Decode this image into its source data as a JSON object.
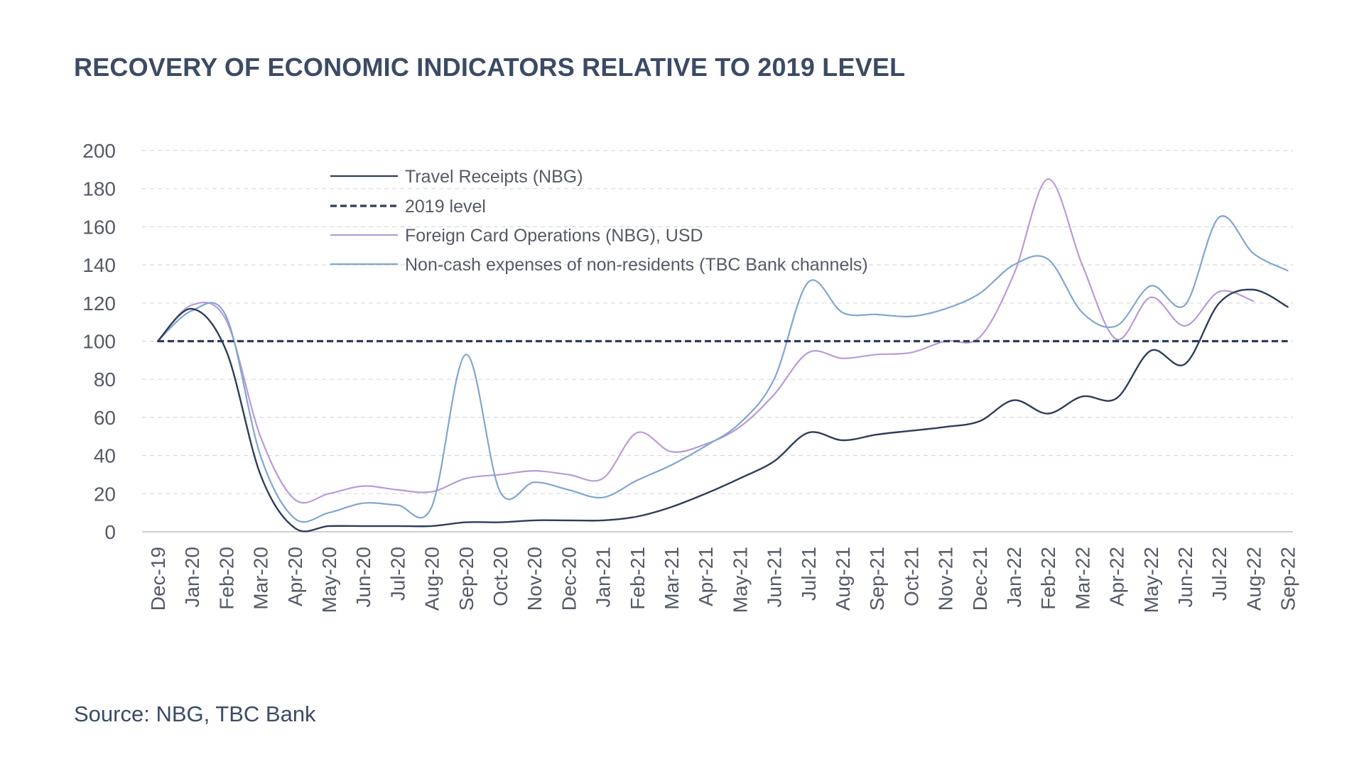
{
  "title": "RECOVERY OF ECONOMIC INDICATORS RELATIVE TO 2019 LEVEL",
  "source": "Source: NBG, TBC Bank",
  "colors": {
    "travel": "#2e3d5a",
    "baseline": "#2e3d5a",
    "foreign_card": "#b99ad9",
    "non_cash": "#7fa6d1",
    "grid": "#d9d9d9",
    "text": "#555a66",
    "title": "#3b4b66"
  },
  "chart_data": {
    "type": "line",
    "title": "RECOVERY OF ECONOMIC INDICATORS RELATIVE TO 2019 LEVEL",
    "xlabel": "",
    "ylabel": "",
    "ylim": [
      0,
      200
    ],
    "yticks": [
      0,
      20,
      40,
      60,
      80,
      100,
      120,
      140,
      160,
      180,
      200
    ],
    "grid": true,
    "legend_position": "top-left inside plot",
    "categories": [
      "Dec-19",
      "Jan-20",
      "Feb-20",
      "Mar-20",
      "Apr-20",
      "May-20",
      "Jun-20",
      "Jul-20",
      "Aug-20",
      "Sep-20",
      "Oct-20",
      "Nov-20",
      "Dec-20",
      "Jan-21",
      "Feb-21",
      "Mar-21",
      "Apr-21",
      "May-21",
      "Jun-21",
      "Jul-21",
      "Aug-21",
      "Sep-21",
      "Oct-21",
      "Nov-21",
      "Dec-21",
      "Jan-22",
      "Feb-22",
      "Mar-22",
      "Apr-22",
      "May-22",
      "Jun-22",
      "Jul-22",
      "Aug-22",
      "Sep-22"
    ],
    "series": [
      {
        "name": "Travel Receipts (NBG)",
        "key": "travel",
        "style": "solid",
        "values": [
          100,
          117,
          95,
          30,
          2,
          3,
          3,
          3,
          3,
          5,
          5,
          6,
          6,
          6,
          8,
          13,
          20,
          28,
          37,
          52,
          48,
          51,
          53,
          55,
          58,
          69,
          62,
          71,
          70,
          95,
          88,
          120,
          127,
          118
        ]
      },
      {
        "name": "2019 level",
        "key": "baseline",
        "style": "dashed",
        "values": [
          100,
          100,
          100,
          100,
          100,
          100,
          100,
          100,
          100,
          100,
          100,
          100,
          100,
          100,
          100,
          100,
          100,
          100,
          100,
          100,
          100,
          100,
          100,
          100,
          100,
          100,
          100,
          100,
          100,
          100,
          100,
          100,
          100,
          100
        ]
      },
      {
        "name": "Foreign Card Operations (NBG), USD",
        "key": "foreign_card",
        "style": "solid",
        "values": [
          100,
          119,
          111,
          50,
          17,
          20,
          24,
          22,
          21,
          28,
          30,
          32,
          30,
          28,
          52,
          42,
          46,
          55,
          72,
          94,
          91,
          93,
          94,
          100,
          102,
          135,
          185,
          140,
          101,
          123,
          108,
          126,
          121,
          null
        ]
      },
      {
        "name": "Non-cash expenses of non-residents  (TBC Bank channels)",
        "key": "non_cash",
        "style": "solid",
        "values": [
          100,
          116,
          113,
          40,
          7,
          10,
          15,
          14,
          13,
          93,
          21,
          26,
          22,
          18,
          27,
          35,
          45,
          57,
          80,
          131,
          115,
          114,
          113,
          117,
          125,
          140,
          143,
          115,
          108,
          129,
          119,
          165,
          146,
          137
        ]
      }
    ]
  }
}
